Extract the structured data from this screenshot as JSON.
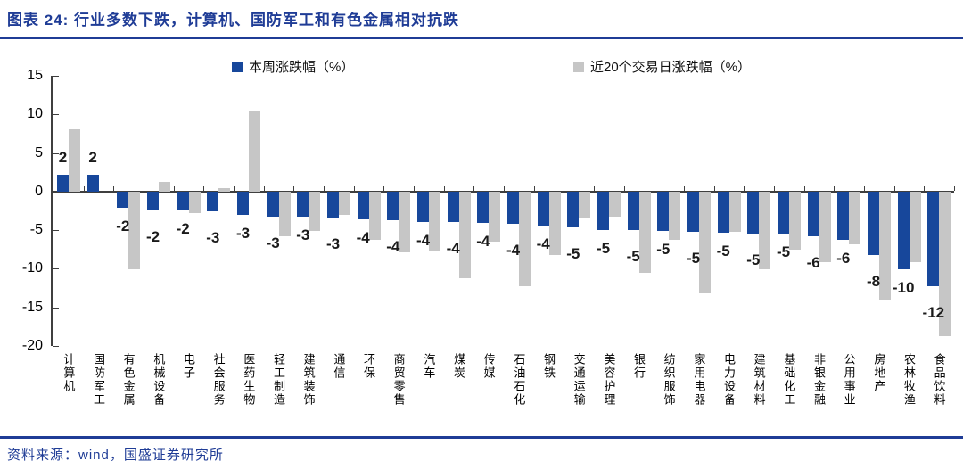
{
  "header": {
    "title": "图表 24: 行业多数下跌，计算机、国防军工和有色金属相对抗跌"
  },
  "footer": {
    "source": "资料来源：wind，国盛证券研究所"
  },
  "colors": {
    "week_bar": "#17479B",
    "month_bar": "#C6C6C6",
    "accent_navy": "#1F3C96",
    "axis": "#3f3f3f"
  },
  "chart_data": {
    "type": "bar",
    "title": "",
    "xlabel": "",
    "ylabel": "",
    "ylim": [
      -20,
      15
    ],
    "yticks": [
      15,
      10,
      5,
      0,
      -5,
      -10,
      -15,
      -20
    ],
    "grid": false,
    "legend_position": "top",
    "legend": [
      {
        "name": "本周涨跌幅（%）",
        "color": "#17479B"
      },
      {
        "name": "近20个交易日涨跌幅（%）",
        "color": "#C6C6C6"
      }
    ],
    "categories": [
      "计算机",
      "国防军工",
      "有色金属",
      "机械设备",
      "电子",
      "社会服务",
      "医药生物",
      "轻工制造",
      "建筑装饰",
      "通信",
      "环保",
      "商贸零售",
      "汽车",
      "煤炭",
      "传媒",
      "石油石化",
      "钢铁",
      "交通运输",
      "美容护理",
      "银行",
      "纺织服饰",
      "家用电器",
      "电力设备",
      "建筑材料",
      "基础化工",
      "非银金融",
      "公用事业",
      "房地产",
      "农林牧渔",
      "食品饮料"
    ],
    "series": [
      {
        "name": "本周涨跌幅（%）",
        "values": [
          2.2,
          2.2,
          -2.1,
          -2.4,
          -2.4,
          -2.6,
          -3.0,
          -3.2,
          -3.3,
          -3.4,
          -3.6,
          -3.7,
          -3.9,
          -4.0,
          -4.1,
          -4.2,
          -4.4,
          -4.6,
          -5.0,
          -5.0,
          -5.1,
          -5.2,
          -5.3,
          -5.4,
          -5.4,
          -5.8,
          -6.3,
          -8.2,
          -10.1,
          -12.3
        ]
      },
      {
        "name": "近20个交易日涨跌幅（%）",
        "values": [
          8.1,
          0.0,
          -10.1,
          1.3,
          -2.8,
          0.5,
          10.4,
          -5.8,
          -5.1,
          -3.0,
          -6.3,
          -7.9,
          -7.7,
          -11.2,
          -6.5,
          -12.3,
          -8.2,
          -3.5,
          -3.3,
          -10.5,
          -6.2,
          -13.2,
          -5.2,
          -10.1,
          -7.5,
          -9.2,
          -6.8,
          -14.1,
          -9.1,
          -18.7
        ]
      }
    ],
    "data_labels": [
      "2",
      "2",
      "-2",
      "-2",
      "-2",
      "-3",
      "-3",
      "-3",
      "-3",
      "-3",
      "-4",
      "-4",
      "-4",
      "-4",
      "-4",
      "-4",
      "-4",
      "-5",
      "-5",
      "-5",
      "-5",
      "-5",
      "-5",
      "-5",
      "-5",
      "-6",
      "-6",
      "-8",
      "-10",
      "-12"
    ]
  }
}
